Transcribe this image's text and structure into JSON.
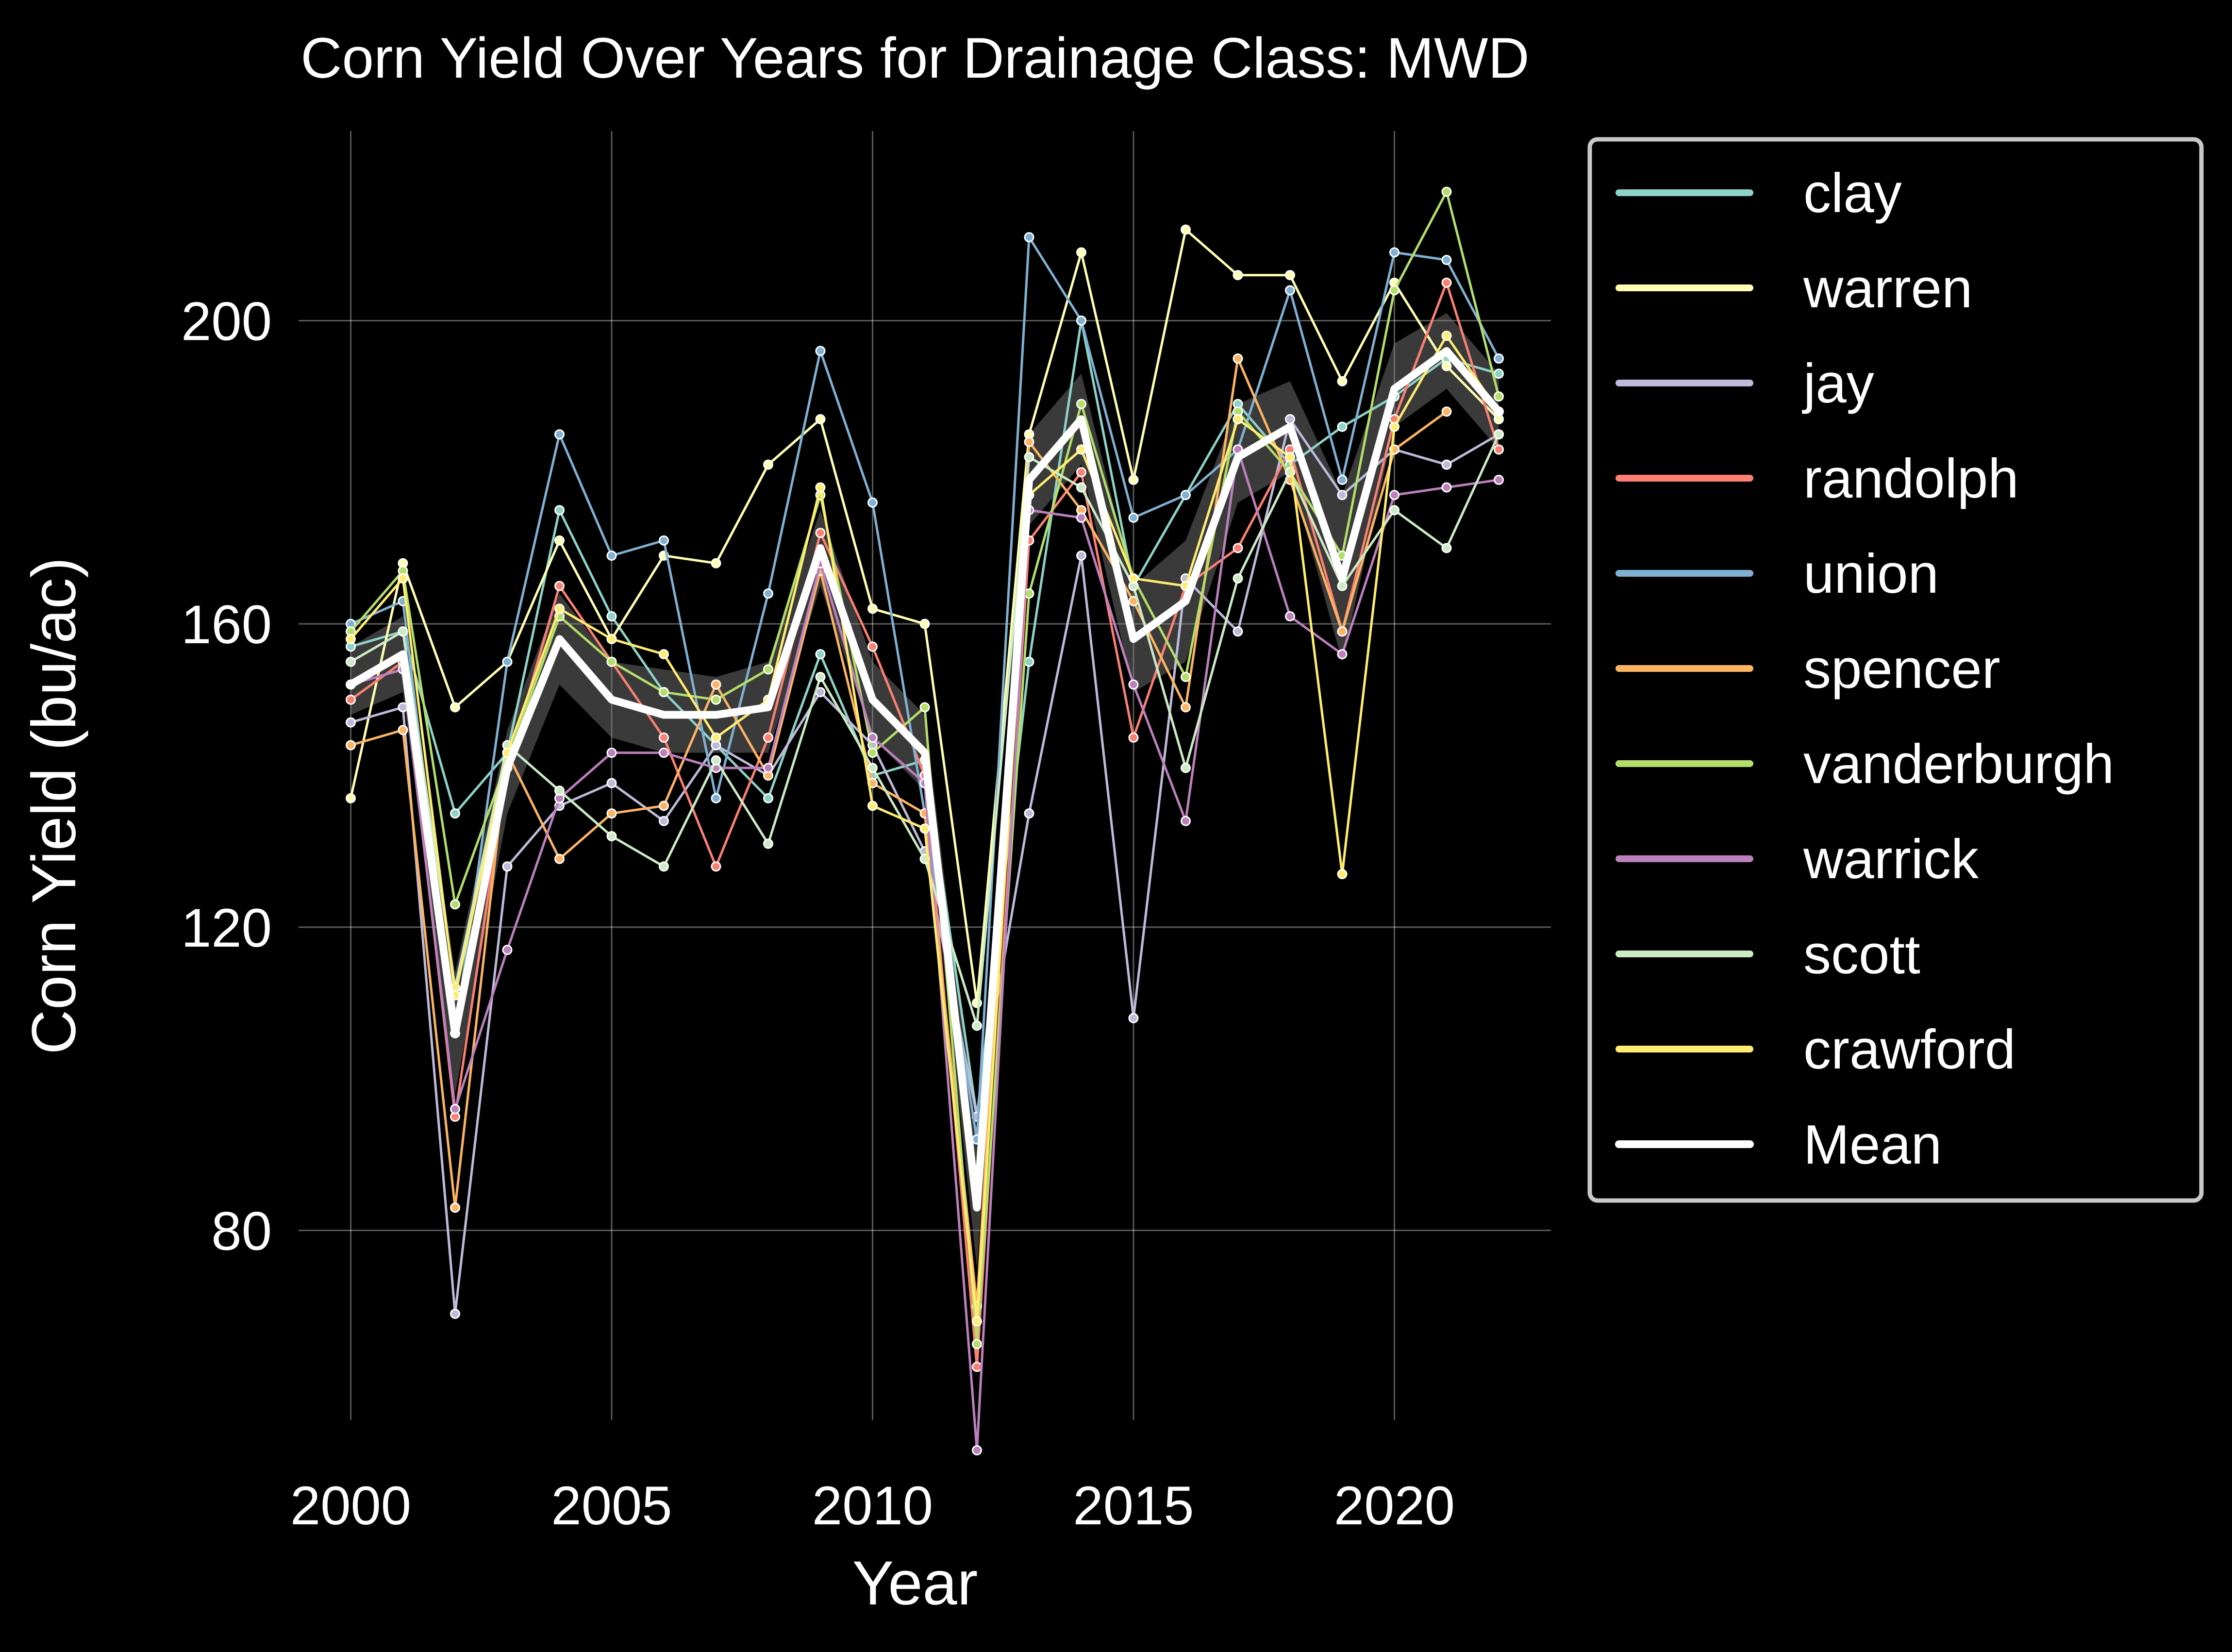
{
  "chart_data": {
    "type": "line",
    "title": "Corn Yield Over Years for Drainage Class: MWD",
    "xlabel": "Year",
    "ylabel": "Corn Yield (bu/ac)",
    "xlim": [
      1999,
      2023
    ],
    "ylim": [
      55,
      225
    ],
    "xticks": [
      2000,
      2005,
      2010,
      2015,
      2020
    ],
    "yticks": [
      80,
      120,
      160,
      200
    ],
    "grid": true,
    "legend_position": "right, outside plot",
    "background": "#000000",
    "years": [
      2000,
      2001,
      2002,
      2003,
      2004,
      2005,
      2006,
      2007,
      2008,
      2009,
      2010,
      2011,
      2012,
      2013,
      2014,
      2015,
      2016,
      2017,
      2018,
      2019,
      2020,
      2021,
      2022
    ],
    "series": [
      {
        "name": "clay",
        "color": "#8dd3c7",
        "values": [
          157,
          159,
          135,
          143,
          175,
          161,
          151,
          144,
          137,
          156,
          140,
          142,
          95,
          155,
          200,
          165,
          177,
          189,
          181,
          186,
          190,
          195,
          193
        ]
      },
      {
        "name": "warren",
        "color": "#ffffb3",
        "values": [
          137,
          168,
          149,
          155,
          171,
          158,
          169,
          168,
          181,
          187,
          162,
          160,
          110,
          185,
          209,
          179,
          212,
          206,
          206,
          192,
          205,
          194,
          187
        ]
      },
      {
        "name": "jay",
        "color": "#bebada",
        "values": [
          147,
          149,
          69,
          128,
          136,
          139,
          134,
          144,
          140,
          151,
          144,
          130,
          95,
          135,
          169,
          108,
          166,
          159,
          187,
          177,
          183,
          181,
          185
        ]
      },
      {
        "name": "randolph",
        "color": "#fb8072",
        "values": [
          150,
          155,
          95,
          141,
          165,
          155,
          145,
          128,
          145,
          172,
          157,
          140,
          62,
          171,
          180,
          145,
          165,
          170,
          183,
          159,
          187,
          205,
          183
        ]
      },
      {
        "name": "union",
        "color": "#80b1d3",
        "values": [
          160,
          163,
          106,
          155,
          185,
          169,
          171,
          137,
          164,
          196,
          176,
          135,
          92,
          211,
          200,
          174,
          177,
          183,
          204,
          179,
          209,
          208,
          195
        ]
      },
      {
        "name": "spencer",
        "color": "#fdb462",
        "values": [
          144,
          146,
          83,
          143,
          129,
          135,
          136,
          152,
          140,
          167,
          139,
          135,
          70,
          184,
          175,
          163,
          149,
          195,
          179,
          159,
          183,
          188,
          null
        ]
      },
      {
        "name": "vanderburgh",
        "color": "#b3de69",
        "values": [
          159,
          167,
          123,
          142,
          161,
          155,
          151,
          150,
          154,
          177,
          143,
          149,
          65,
          164,
          189,
          166,
          153,
          188,
          180,
          169,
          204,
          217,
          190
        ]
      },
      {
        "name": "warrick",
        "color": "#bc80bd",
        "values": [
          152,
          154,
          96,
          117,
          137,
          143,
          143,
          141,
          141,
          168,
          145,
          139,
          51,
          175,
          174,
          152,
          134,
          183,
          161,
          156,
          177,
          178,
          179
        ]
      },
      {
        "name": "scott",
        "color": "#ccebc5",
        "values": [
          155,
          159,
          112,
          144,
          138,
          132,
          128,
          142,
          131,
          153,
          141,
          129,
          107,
          182,
          178,
          165,
          141,
          166,
          180,
          165,
          175,
          170,
          185
        ]
      },
      {
        "name": "crawford",
        "color": "#ffed6f",
        "values": [
          158,
          166,
          111,
          143,
          162,
          158,
          156,
          145,
          150,
          178,
          136,
          133,
          68,
          177,
          183,
          166,
          165,
          187,
          182,
          127,
          186,
          198,
          188
        ]
      },
      {
        "name": "Mean",
        "color": "#ffffff",
        "values": [
          152,
          156,
          106,
          141,
          158,
          150,
          148,
          148,
          149,
          170,
          150,
          143,
          83,
          179,
          187,
          158,
          163,
          182,
          186,
          166,
          191,
          196,
          188
        ]
      }
    ],
    "band": {
      "color": "#808080",
      "lower": [
        148,
        151,
        98,
        135,
        152,
        145,
        143,
        143,
        143,
        165,
        145,
        138,
        75,
        173,
        181,
        151,
        155,
        176,
        180,
        155,
        186,
        191,
        183
      ],
      "upper": [
        157,
        161,
        114,
        146,
        164,
        155,
        154,
        153,
        155,
        175,
        155,
        148,
        91,
        185,
        193,
        165,
        171,
        189,
        192,
        177,
        197,
        201,
        193
      ]
    }
  }
}
